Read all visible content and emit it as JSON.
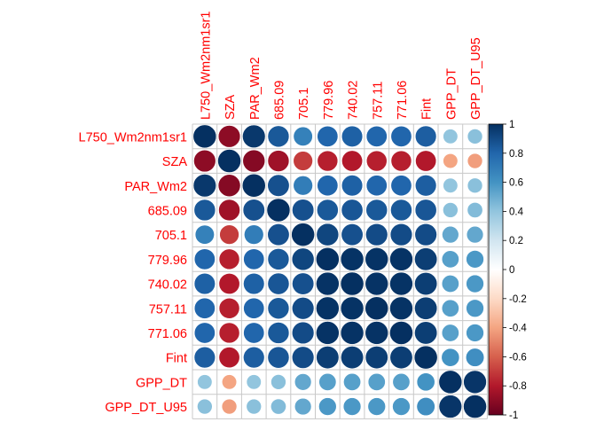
{
  "chart_data": {
    "type": "heatmap",
    "style": "circle correlation plot",
    "variables": [
      "L750_Wm2nm1sr1",
      "SZA",
      "PAR_Wm2",
      "685.09",
      "705.1",
      "779.96",
      "740.02",
      "757.11",
      "771.06",
      "Fint",
      "GPP_DT",
      "GPP_DT_U95"
    ],
    "matrix": [
      [
        1.0,
        -0.9,
        0.97,
        0.85,
        0.68,
        0.8,
        0.82,
        0.8,
        0.8,
        0.83,
        0.4,
        0.42
      ],
      [
        -0.9,
        1.0,
        -0.92,
        -0.85,
        -0.7,
        -0.78,
        -0.8,
        -0.78,
        -0.78,
        -0.8,
        -0.4,
        -0.42
      ],
      [
        0.97,
        -0.92,
        1.0,
        0.88,
        0.7,
        0.8,
        0.82,
        0.8,
        0.8,
        0.83,
        0.4,
        0.42
      ],
      [
        0.85,
        -0.85,
        0.88,
        1.0,
        0.88,
        0.85,
        0.86,
        0.85,
        0.85,
        0.86,
        0.42,
        0.44
      ],
      [
        0.68,
        -0.7,
        0.7,
        0.88,
        1.0,
        0.92,
        0.88,
        0.9,
        0.9,
        0.9,
        0.52,
        0.52
      ],
      [
        0.8,
        -0.78,
        0.8,
        0.85,
        0.92,
        1.0,
        0.99,
        0.99,
        0.99,
        0.95,
        0.55,
        0.58
      ],
      [
        0.82,
        -0.8,
        0.82,
        0.86,
        0.88,
        0.99,
        1.0,
        0.99,
        0.99,
        0.95,
        0.55,
        0.58
      ],
      [
        0.8,
        -0.78,
        0.8,
        0.85,
        0.9,
        0.99,
        0.99,
        1.0,
        0.99,
        0.95,
        0.55,
        0.58
      ],
      [
        0.8,
        -0.78,
        0.8,
        0.85,
        0.9,
        0.99,
        0.99,
        0.99,
        1.0,
        0.95,
        0.55,
        0.58
      ],
      [
        0.83,
        -0.8,
        0.83,
        0.86,
        0.9,
        0.95,
        0.95,
        0.95,
        0.95,
        1.0,
        0.6,
        0.62
      ],
      [
        0.4,
        -0.4,
        0.4,
        0.42,
        0.52,
        0.55,
        0.55,
        0.55,
        0.55,
        0.6,
        1.0,
        0.98
      ],
      [
        0.42,
        -0.42,
        0.42,
        0.44,
        0.52,
        0.58,
        0.58,
        0.58,
        0.58,
        0.62,
        0.98,
        1.0
      ]
    ],
    "colorbar": {
      "range": [
        -1,
        1
      ],
      "ticks": [
        "1",
        "0.8",
        "0.6",
        "0.4",
        "0.2",
        "0",
        "-0.2",
        "-0.4",
        "-0.6",
        "-0.8",
        "-1"
      ],
      "tick_values": [
        1,
        0.8,
        0.6,
        0.4,
        0.2,
        0,
        -0.2,
        -0.4,
        -0.6,
        -0.8,
        -1
      ],
      "colors": [
        "#67001F",
        "#B2182B",
        "#D6604D",
        "#F4A582",
        "#FDDBC7",
        "#FFFFFF",
        "#D1E5F0",
        "#92C5DE",
        "#4393C3",
        "#2166AC",
        "#053061"
      ]
    },
    "label_color": "#FF0000",
    "grid": true,
    "legend_position": "right"
  }
}
